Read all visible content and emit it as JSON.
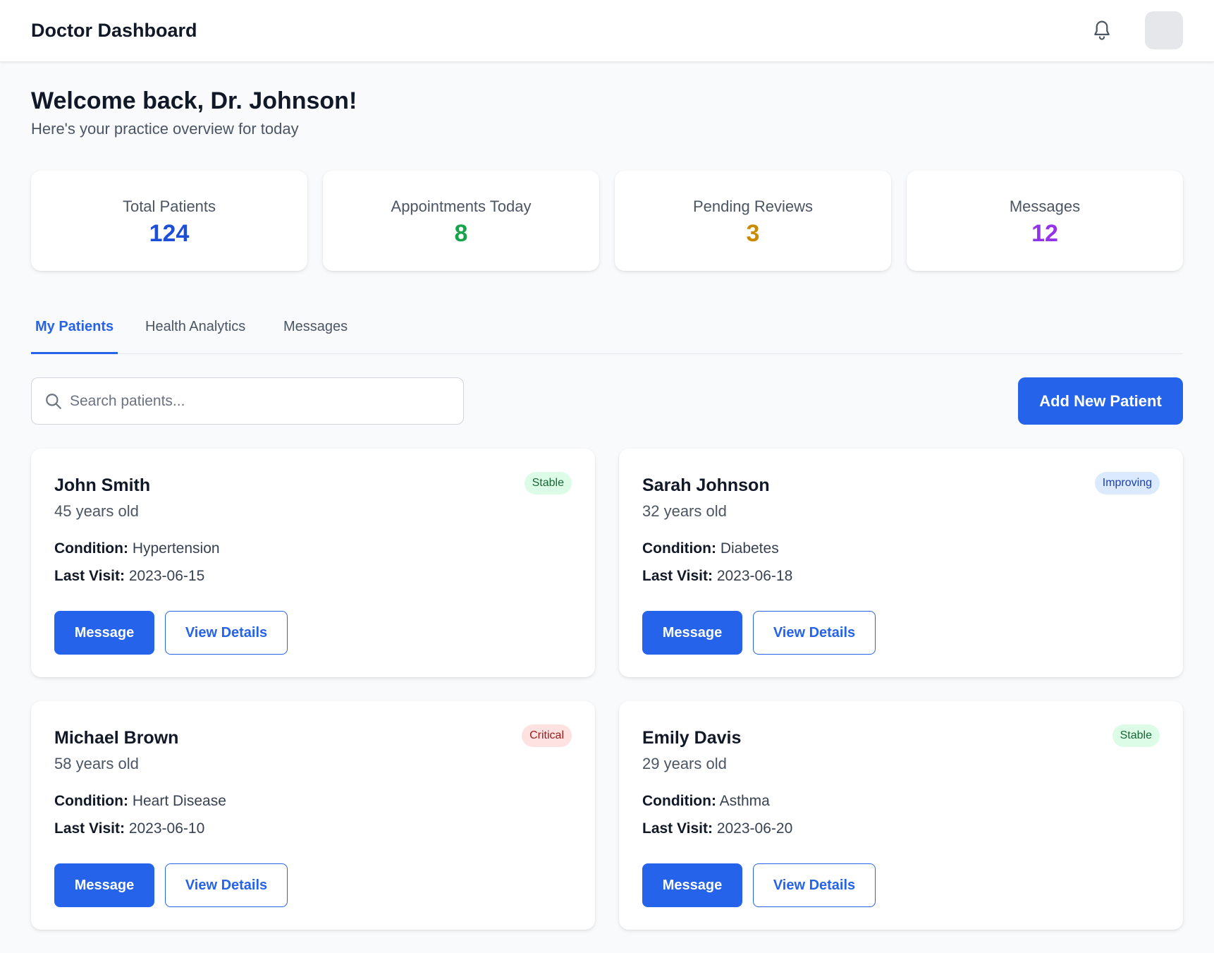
{
  "header": {
    "title": "Doctor Dashboard",
    "bell_icon": "bell-icon"
  },
  "welcome": {
    "title": "Welcome back, Dr. Johnson!",
    "subtitle": "Here's your practice overview for today"
  },
  "stats": [
    {
      "label": "Total Patients",
      "value": "124",
      "color": "#1d4ed8"
    },
    {
      "label": "Appointments Today",
      "value": "8",
      "color": "#16a34a"
    },
    {
      "label": "Pending Reviews",
      "value": "3",
      "color": "#ca8a04"
    },
    {
      "label": "Messages",
      "value": "12",
      "color": "#9333ea"
    }
  ],
  "tabs": [
    {
      "label": "My Patients",
      "active": true
    },
    {
      "label": "Health Analytics",
      "active": false
    },
    {
      "label": "Messages",
      "active": false
    }
  ],
  "search": {
    "placeholder": "Search patients...",
    "value": ""
  },
  "add_button_label": "Add New Patient",
  "patients": [
    {
      "name": "John Smith",
      "age": "45 years old",
      "condition_label": "Condition:",
      "condition": "Hypertension",
      "last_visit_label": "Last Visit:",
      "last_visit": "2023-06-15",
      "status": "Stable",
      "status_bg": "#dcfce7",
      "status_color": "#166534",
      "message_label": "Message",
      "details_label": "View Details"
    },
    {
      "name": "Sarah Johnson",
      "age": "32 years old",
      "condition_label": "Condition:",
      "condition": "Diabetes",
      "last_visit_label": "Last Visit:",
      "last_visit": "2023-06-18",
      "status": "Improving",
      "status_bg": "#dbeafe",
      "status_color": "#1e40af",
      "message_label": "Message",
      "details_label": "View Details"
    },
    {
      "name": "Michael Brown",
      "age": "58 years old",
      "condition_label": "Condition:",
      "condition": "Heart Disease",
      "last_visit_label": "Last Visit:",
      "last_visit": "2023-06-10",
      "status": "Critical",
      "status_bg": "#fee2e2",
      "status_color": "#991b1b",
      "message_label": "Message",
      "details_label": "View Details"
    },
    {
      "name": "Emily Davis",
      "age": "29 years old",
      "condition_label": "Condition:",
      "condition": "Asthma",
      "last_visit_label": "Last Visit:",
      "last_visit": "2023-06-20",
      "status": "Stable",
      "status_bg": "#dcfce7",
      "status_color": "#166534",
      "message_label": "Message",
      "details_label": "View Details"
    }
  ]
}
